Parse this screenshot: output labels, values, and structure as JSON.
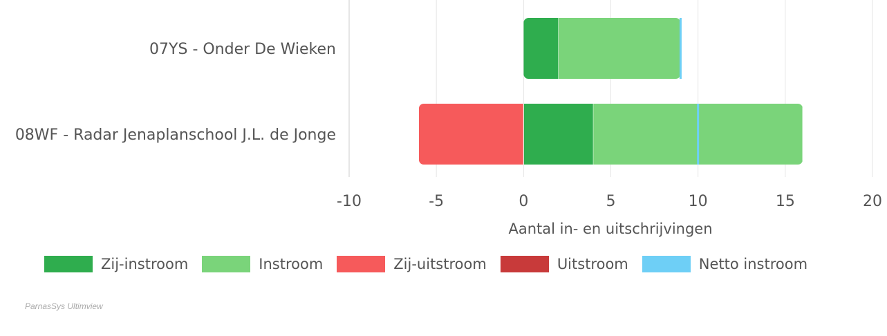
{
  "chart_data": {
    "type": "bar",
    "orientation": "horizontal",
    "stacked": true,
    "categories": [
      "07YS - Onder De Wieken",
      "08WF - Radar Jenaplanschool J.L. de Jonge"
    ],
    "series": [
      {
        "name": "Zij-instroom",
        "color": "#2fad4e",
        "values": [
          2,
          4
        ]
      },
      {
        "name": "Instroom",
        "color": "#7ad47a",
        "values": [
          7,
          12
        ]
      },
      {
        "name": "Zij-uitstroom",
        "color": "#f65a5b",
        "values": [
          0,
          -6
        ]
      },
      {
        "name": "Uitstroom",
        "color": "#c83a3a",
        "values": [
          0,
          0
        ]
      }
    ],
    "net_series": {
      "name": "Netto instroom",
      "color": "#6ecff6",
      "values": [
        9,
        10
      ]
    },
    "xlabel": "Aantal in- en uitschrijvingen",
    "xlim": [
      -10,
      20
    ],
    "xticks": [
      "-10",
      "-5",
      "0",
      "5",
      "10",
      "15",
      "20"
    ],
    "grid": true,
    "legend_position": "bottom"
  },
  "credits": "ParnasSys Ultimview"
}
